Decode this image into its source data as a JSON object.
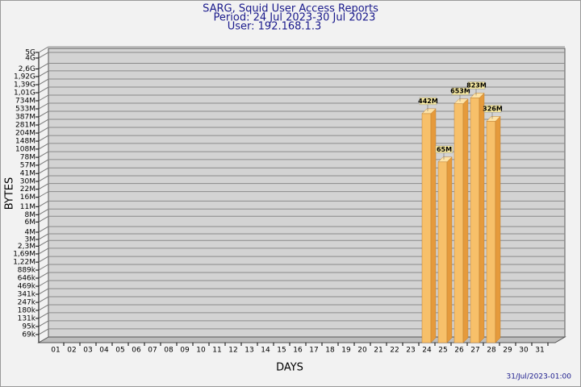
{
  "chart_data": {
    "type": "bar",
    "title": "SARG, Squid User Access Reports",
    "subtitle": "Period: 24 Jul 2023-30 Jul 2023",
    "user": "User: 192.168.1.3",
    "x_label": "DAYS",
    "y_label": "BYTES",
    "footer": "31/Jul/2023-01:00",
    "categories": [
      "01",
      "02",
      "03",
      "04",
      "05",
      "06",
      "07",
      "08",
      "09",
      "10",
      "11",
      "12",
      "13",
      "14",
      "15",
      "16",
      "17",
      "18",
      "19",
      "20",
      "21",
      "22",
      "23",
      "24",
      "25",
      "26",
      "27",
      "28",
      "29",
      "30",
      "31"
    ],
    "values": [
      null,
      null,
      null,
      null,
      null,
      null,
      null,
      null,
      null,
      null,
      null,
      null,
      null,
      null,
      null,
      null,
      null,
      null,
      null,
      null,
      null,
      null,
      null,
      442000000,
      65000000,
      653000000,
      823000000,
      326000000,
      null,
      null,
      null
    ],
    "value_labels": [
      null,
      null,
      null,
      null,
      null,
      null,
      null,
      null,
      null,
      null,
      null,
      null,
      null,
      null,
      null,
      null,
      null,
      null,
      null,
      null,
      null,
      null,
      null,
      "442M",
      "65M",
      "653M",
      "823M",
      "326M",
      null,
      null,
      null
    ],
    "color": "#f7c06a",
    "log_scale": true,
    "grid": true,
    "ylim": [
      50000,
      5000000000
    ],
    "yticks": [
      {
        "value": 5000000000,
        "label": "5G"
      },
      {
        "value": 4000000000,
        "label": "4G"
      },
      {
        "value": 2600000000,
        "label": "2,6G"
      },
      {
        "value": 1920000000,
        "label": "1,92G"
      },
      {
        "value": 1390000000,
        "label": "1,39G"
      },
      {
        "value": 1010000000,
        "label": "1,01G"
      },
      {
        "value": 734000000,
        "label": "734M"
      },
      {
        "value": 533000000,
        "label": "533M"
      },
      {
        "value": 387000000,
        "label": "387M"
      },
      {
        "value": 281000000,
        "label": "281M"
      },
      {
        "value": 204000000,
        "label": "204M"
      },
      {
        "value": 148000000,
        "label": "148M"
      },
      {
        "value": 108000000,
        "label": "108M"
      },
      {
        "value": 78000000,
        "label": "78M"
      },
      {
        "value": 57000000,
        "label": "57M"
      },
      {
        "value": 41000000,
        "label": "41M"
      },
      {
        "value": 30000000,
        "label": "30M"
      },
      {
        "value": 22000000,
        "label": "22M"
      },
      {
        "value": 16000000,
        "label": "16M"
      },
      {
        "value": 11000000,
        "label": "11M"
      },
      {
        "value": 8000000,
        "label": "8M"
      },
      {
        "value": 6000000,
        "label": "6M"
      },
      {
        "value": 4000000,
        "label": "4M"
      },
      {
        "value": 3000000,
        "label": "3M"
      },
      {
        "value": 2300000,
        "label": "2,3M"
      },
      {
        "value": 1690000,
        "label": "1,69M"
      },
      {
        "value": 1220000,
        "label": "1,22M"
      },
      {
        "value": 889000,
        "label": "889k"
      },
      {
        "value": 646000,
        "label": "646k"
      },
      {
        "value": 469000,
        "label": "469k"
      },
      {
        "value": 341000,
        "label": "341k"
      },
      {
        "value": 247000,
        "label": "247k"
      },
      {
        "value": 180000,
        "label": "180k"
      },
      {
        "value": 131000,
        "label": "131k"
      },
      {
        "value": 95000,
        "label": "95k"
      },
      {
        "value": 69000,
        "label": "69k"
      }
    ]
  }
}
